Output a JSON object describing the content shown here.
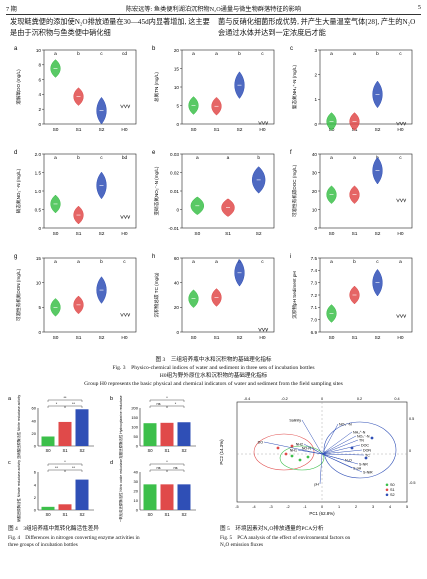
{
  "header": {
    "page_left": "7 期",
    "title": "陈宏远等: 鱼类便利湖泊沉积物N₂O通量与微生物群落特征的影响",
    "page_right": "5"
  },
  "body_text": {
    "left": "发现鲢粪便的添加使N₂O排放通量在30—45d内显著增加, 这主要是由于沉积物与鱼类便中硝化细",
    "right": "菌与反硝化细菌形成优势, 并产生大量温室气体[28], 产生的N₂O会通过水体并达到一定浓度后才能"
  },
  "fig3": {
    "caption_cn": "图 3　三组培养瓶中水和沉积物的基础理化指标",
    "caption_en": "Fig. 3　Physico-chemical indices of water and sediment in three sets of incubation bottles",
    "note_cn": "H0组为野外原位水和沉积物的基础理化指标",
    "note_en": "Group H0 represents the basic physical and chemical indicators of water and sediment from the field sampling sites",
    "categories": [
      "S0",
      "S1",
      "S2",
      "H0"
    ],
    "cat3": [
      "S0",
      "S1",
      "S2"
    ],
    "panels": [
      {
        "tag": "a",
        "ylabel": "溶解氧DO (mg/L)",
        "ymax": 10,
        "ticks": [
          "0",
          "2",
          "4",
          "6",
          "8",
          "10"
        ],
        "letters": [
          "a",
          "b",
          "c",
          "cd"
        ],
        "values": [
          7.5,
          3.7,
          1.8,
          2.4
        ],
        "colors": [
          "#3cbf4a",
          "#e04a4a",
          "#2f4fb6"
        ]
      },
      {
        "tag": "b",
        "ylabel": "总氮TN (mg/L)",
        "ymax": 20,
        "ticks": [
          "0",
          "5",
          "10",
          "15",
          "20"
        ],
        "letters": [
          "a",
          "a",
          "b",
          "c"
        ],
        "values": [
          5,
          4.8,
          10.5,
          0.3
        ],
        "colors": [
          "#3cbf4a",
          "#e04a4a",
          "#2f4fb6"
        ]
      },
      {
        "tag": "c",
        "ylabel": "氨态氮NH₄⁺-N (mg/L)",
        "ymax": 3,
        "ticks": [
          "0",
          "1",
          "2",
          "3"
        ],
        "letters": [
          "a",
          "a",
          "b",
          "c"
        ],
        "values": [
          0.1,
          0.1,
          1.2,
          0.02
        ],
        "colors": [
          "#3cbf4a",
          "#e04a4a",
          "#2f4fb6"
        ]
      },
      {
        "tag": "d",
        "ylabel": "硝态氮NO₃⁻-N (mg/L)",
        "ymax": 2,
        "ticks": [
          "0",
          "0.5",
          "1.0",
          "1.5",
          "2.0"
        ],
        "letters": [
          "a",
          "b",
          "c",
          "bd"
        ],
        "values": [
          0.65,
          0.35,
          1.15,
          0.3
        ],
        "colors": [
          "#3cbf4a",
          "#e04a4a",
          "#2f4fb6"
        ]
      },
      {
        "tag": "e",
        "ylabel": "亚硝态氮NO₂⁻-N (mg/L)",
        "ymax": 0.03,
        "ticks": [
          "-0.01",
          "0",
          "0.01",
          "0.02",
          "0.03"
        ],
        "letters": [
          "a",
          "a",
          "b"
        ],
        "values": [
          0.002,
          0.001,
          0.016
        ],
        "colors": [
          "#3cbf4a",
          "#e04a4a",
          "#2f4fb6"
        ]
      },
      {
        "tag": "f",
        "ylabel": "可溶性有机碳DOC (mg/L)",
        "ymax": 40,
        "ticks": [
          "0",
          "10",
          "20",
          "30",
          "40"
        ],
        "letters": [
          "a",
          "a",
          "b",
          "c"
        ],
        "values": [
          18,
          18,
          31,
          15
        ],
        "colors": [
          "#3cbf4a",
          "#e04a4a",
          "#2f4fb6"
        ]
      },
      {
        "tag": "g",
        "ylabel": "可溶性有机氮DON (mg/L)",
        "ymax": 15,
        "ticks": [
          "0",
          "5",
          "10",
          "15"
        ],
        "letters": [
          "a",
          "a",
          "b",
          "c"
        ],
        "values": [
          5,
          5.5,
          8.5,
          3.5
        ],
        "colors": [
          "#3cbf4a",
          "#e04a4a",
          "#2f4fb6"
        ]
      },
      {
        "tag": "h",
        "ylabel": "沉积物总碳 TC (mg/g)",
        "ymax": 60,
        "ticks": [
          "0",
          "20",
          "40",
          "60"
        ],
        "letters": [
          "a",
          "a",
          "b",
          "c"
        ],
        "values": [
          27,
          28,
          48,
          2
        ],
        "colors": [
          "#3cbf4a",
          "#e04a4a",
          "#2f4fb6"
        ]
      },
      {
        "tag": "i",
        "ylabel": "沉积物pH Sediment pH",
        "ymax": 7.5,
        "ymin": 6.9,
        "ticks": [
          "6.9",
          "7.0",
          "7.1",
          "7.2",
          "7.3",
          "7.4",
          "7.5"
        ],
        "letters": [
          "a",
          "b",
          "c",
          "a"
        ],
        "values": [
          7.05,
          7.2,
          7.3,
          7.03
        ],
        "colors": [
          "#3cbf4a",
          "#e04a4a",
          "#2f4fb6"
        ]
      }
    ]
  },
  "fig4": {
    "caption_cn": "图 4　3组培养瓶中氮转化酶活性差异",
    "caption_en_1": "Fig. 4　Differences in nitrogen converting enzyme activities in",
    "caption_en_2": "three groups of incubation bottles",
    "categories": [
      "S0",
      "S1",
      "S2"
    ],
    "panels": [
      {
        "tag": "a",
        "ylabel": "亚硝酸还原酶活性 Nitrite reductase activity",
        "ticks": [
          "0",
          "20",
          "40",
          "60"
        ],
        "values": [
          15,
          38,
          58
        ],
        "sig": [
          "*",
          "**",
          "**"
        ]
      },
      {
        "tag": "b",
        "ylabel": "羟胺还原酶活性 Hydroxylamine reductase",
        "ticks": [
          "0",
          "50",
          "100",
          "150",
          "200"
        ],
        "values": [
          120,
          122,
          125
        ],
        "sig": [
          "ns",
          "*",
          "*"
        ]
      },
      {
        "tag": "c",
        "ylabel": "硝酸还原酶活性 Nitrate reductase activity",
        "ticks": [
          "0",
          "2",
          "4",
          "6"
        ],
        "values": [
          0.5,
          0.9,
          4.8
        ],
        "sig": [
          "**",
          "**",
          "*"
        ]
      },
      {
        "tag": "d",
        "ylabel": "一氧化氮还原酶活性 Nitric oxide reductase",
        "ticks": [
          "0",
          "10",
          "20",
          "30",
          "40"
        ],
        "values": [
          27,
          27,
          27
        ],
        "sig": [
          "ns",
          "ns",
          "*"
        ]
      }
    ],
    "colors": [
      "#3cbf4a",
      "#e04a4a",
      "#2f4fb6"
    ]
  },
  "fig5": {
    "caption_cn": "图 5　环境因素对N₂O排放通量的PCA分析",
    "caption_en_1": "Fig. 5　PCA analysis of the effect of environmental factors on",
    "caption_en_2": "N₂O emission fluxes",
    "xlabel": "PC1 (62.8%)",
    "ylabel": "PC2 (14.3%)",
    "xticks": [
      "-5",
      "-4",
      "-3",
      "-2",
      "-1",
      "0",
      "1",
      "2",
      "3",
      "4",
      "5"
    ],
    "top_ticks": [
      "-0.4",
      "-0.2",
      "0",
      "0.2",
      "0.4"
    ],
    "right_ticks": [
      "0.5",
      "0",
      "-0.5"
    ],
    "vector_labels": [
      "Salinity",
      "DO",
      "NO₃⁻-N",
      "NH₄⁺-N",
      "NO₂⁻-N",
      "TN",
      "DOC",
      "DON",
      "TC",
      "NH2",
      "NO-N",
      "NH1",
      "N₂O",
      "S-pH",
      "S-NR",
      "S-NiR",
      "pH"
    ],
    "legend": [
      "S0",
      "S1",
      "S2"
    ]
  }
}
